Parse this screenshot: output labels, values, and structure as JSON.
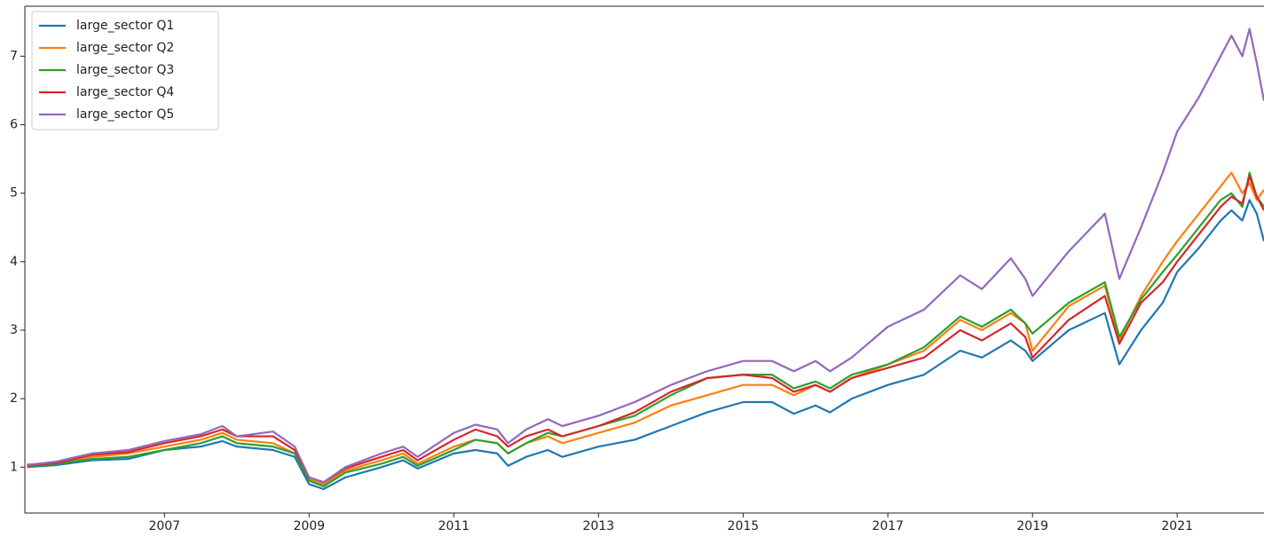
{
  "chart_data": {
    "type": "line",
    "x": [
      2005.1,
      2005.5,
      2006.0,
      2006.5,
      2007.0,
      2007.5,
      2007.8,
      2008.0,
      2008.5,
      2008.8,
      2009.0,
      2009.2,
      2009.5,
      2010.0,
      2010.3,
      2010.5,
      2011.0,
      2011.3,
      2011.6,
      2011.75,
      2012.0,
      2012.3,
      2012.5,
      2013.0,
      2013.5,
      2014.0,
      2014.5,
      2015.0,
      2015.4,
      2015.7,
      2016.0,
      2016.2,
      2016.5,
      2017.0,
      2017.5,
      2018.0,
      2018.3,
      2018.7,
      2018.9,
      2019.0,
      2019.5,
      2020.0,
      2020.2,
      2020.5,
      2020.8,
      2021.0,
      2021.3,
      2021.6,
      2021.75,
      2021.9,
      2022.0,
      2022.1,
      2022.2
    ],
    "series": [
      {
        "name": "large_sector Q1",
        "color": "#1f77b4",
        "values": [
          1.0,
          1.03,
          1.1,
          1.12,
          1.25,
          1.3,
          1.38,
          1.3,
          1.25,
          1.15,
          0.75,
          0.68,
          0.85,
          1.0,
          1.1,
          0.98,
          1.2,
          1.25,
          1.2,
          1.02,
          1.15,
          1.25,
          1.15,
          1.3,
          1.4,
          1.6,
          1.8,
          1.95,
          1.95,
          1.78,
          1.9,
          1.8,
          2.0,
          2.2,
          2.35,
          2.7,
          2.6,
          2.85,
          2.7,
          2.55,
          3.0,
          3.25,
          2.5,
          3.0,
          3.4,
          3.85,
          4.2,
          4.6,
          4.75,
          4.6,
          4.9,
          4.7,
          4.3
        ]
      },
      {
        "name": "large_sector Q2",
        "color": "#ff7f0e",
        "values": [
          1.04,
          1.05,
          1.15,
          1.2,
          1.3,
          1.4,
          1.5,
          1.4,
          1.35,
          1.2,
          0.82,
          0.75,
          0.95,
          1.1,
          1.2,
          1.05,
          1.3,
          1.4,
          1.35,
          1.2,
          1.35,
          1.45,
          1.35,
          1.5,
          1.65,
          1.9,
          2.05,
          2.2,
          2.2,
          2.05,
          2.2,
          2.1,
          2.3,
          2.5,
          2.7,
          3.15,
          3.0,
          3.25,
          3.1,
          2.7,
          3.35,
          3.65,
          2.85,
          3.5,
          4.0,
          4.3,
          4.7,
          5.1,
          5.3,
          5.0,
          5.15,
          4.9,
          5.05
        ]
      },
      {
        "name": "large_sector Q3",
        "color": "#2ca02c",
        "values": [
          1.0,
          1.05,
          1.12,
          1.15,
          1.25,
          1.35,
          1.45,
          1.35,
          1.3,
          1.2,
          0.8,
          0.72,
          0.92,
          1.05,
          1.15,
          1.02,
          1.25,
          1.4,
          1.35,
          1.2,
          1.35,
          1.5,
          1.45,
          1.6,
          1.75,
          2.05,
          2.3,
          2.35,
          2.35,
          2.15,
          2.25,
          2.15,
          2.35,
          2.5,
          2.75,
          3.2,
          3.05,
          3.3,
          3.1,
          2.95,
          3.4,
          3.7,
          2.9,
          3.45,
          3.85,
          4.1,
          4.5,
          4.9,
          5.0,
          4.8,
          5.3,
          4.95,
          4.8
        ]
      },
      {
        "name": "large_sector Q4",
        "color": "#d62728",
        "values": [
          1.02,
          1.06,
          1.18,
          1.22,
          1.35,
          1.45,
          1.55,
          1.45,
          1.45,
          1.25,
          0.85,
          0.78,
          0.98,
          1.15,
          1.25,
          1.1,
          1.4,
          1.55,
          1.45,
          1.3,
          1.45,
          1.55,
          1.45,
          1.6,
          1.8,
          2.1,
          2.3,
          2.35,
          2.3,
          2.1,
          2.2,
          2.1,
          2.3,
          2.45,
          2.6,
          3.0,
          2.85,
          3.1,
          2.9,
          2.6,
          3.15,
          3.5,
          2.8,
          3.4,
          3.7,
          4.0,
          4.4,
          4.8,
          4.95,
          4.85,
          5.25,
          4.95,
          4.75
        ]
      },
      {
        "name": "large_sector Q5",
        "color": "#9467bd",
        "values": [
          1.03,
          1.08,
          1.2,
          1.25,
          1.38,
          1.48,
          1.6,
          1.45,
          1.52,
          1.3,
          0.85,
          0.78,
          1.0,
          1.2,
          1.3,
          1.15,
          1.5,
          1.62,
          1.55,
          1.35,
          1.55,
          1.7,
          1.6,
          1.75,
          1.95,
          2.2,
          2.4,
          2.55,
          2.55,
          2.4,
          2.55,
          2.4,
          2.6,
          3.05,
          3.3,
          3.8,
          3.6,
          4.05,
          3.75,
          3.5,
          4.15,
          4.7,
          3.75,
          4.5,
          5.3,
          5.9,
          6.4,
          7.0,
          7.3,
          7.0,
          7.4,
          6.9,
          6.35
        ]
      }
    ],
    "xlim": [
      2005.07,
      2022.2
    ],
    "xticks": [
      2007,
      2009,
      2011,
      2013,
      2015,
      2017,
      2019,
      2021
    ],
    "ylim": [
      0.33,
      7.73
    ],
    "yticks": [
      1,
      2,
      3,
      4,
      5,
      6,
      7
    ],
    "legend": "upper left"
  }
}
